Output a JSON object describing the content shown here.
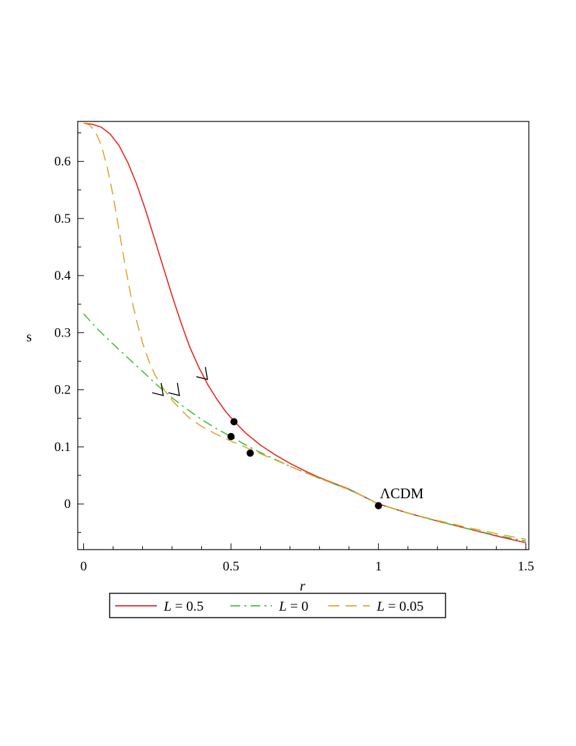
{
  "chart_data": {
    "type": "line",
    "xlabel": "r",
    "ylabel": "s",
    "xlim": [
      -0.02,
      1.51
    ],
    "ylim": [
      -0.08,
      0.67
    ],
    "x_ticks": [
      0,
      0.5,
      1,
      1.5
    ],
    "x_tick_labels": [
      "0",
      "0.5",
      "1",
      "1.5"
    ],
    "y_ticks": [
      0,
      0.1,
      0.2,
      0.3,
      0.4,
      0.5,
      0.6
    ],
    "y_tick_labels": [
      "0",
      "0.1",
      "0.2",
      "0.3",
      "0.4",
      "0.5",
      "0.6"
    ],
    "legend_position": "bottom",
    "series": [
      {
        "name": "L = 0.5",
        "legend_var": "L",
        "legend_value": " = 0.5",
        "color": "#e8211b",
        "dash": "solid",
        "points": [
          [
            0.0,
            0.667
          ],
          [
            0.03,
            0.665
          ],
          [
            0.06,
            0.66
          ],
          [
            0.09,
            0.648
          ],
          [
            0.12,
            0.628
          ],
          [
            0.15,
            0.598
          ],
          [
            0.18,
            0.56
          ],
          [
            0.21,
            0.515
          ],
          [
            0.24,
            0.465
          ],
          [
            0.27,
            0.415
          ],
          [
            0.3,
            0.365
          ],
          [
            0.33,
            0.318
          ],
          [
            0.36,
            0.275
          ],
          [
            0.39,
            0.24
          ],
          [
            0.42,
            0.21
          ],
          [
            0.45,
            0.185
          ],
          [
            0.48,
            0.163
          ],
          [
            0.51,
            0.145
          ],
          [
            0.55,
            0.124
          ],
          [
            0.6,
            0.103
          ],
          [
            0.65,
            0.086
          ],
          [
            0.7,
            0.071
          ],
          [
            0.75,
            0.058
          ],
          [
            0.8,
            0.046
          ],
          [
            0.85,
            0.036
          ],
          [
            0.9,
            0.026
          ],
          [
            0.95,
            0.013
          ],
          [
            1.0,
            0.0
          ],
          [
            1.1,
            -0.016
          ],
          [
            1.2,
            -0.03
          ],
          [
            1.3,
            -0.043
          ],
          [
            1.4,
            -0.056
          ],
          [
            1.5,
            -0.068
          ]
        ]
      },
      {
        "name": "L = 0",
        "legend_var": "L",
        "legend_value": " = 0",
        "color": "#3fbf3f",
        "dash": "dashdot",
        "points": [
          [
            0.0,
            0.333
          ],
          [
            0.05,
            0.305
          ],
          [
            0.1,
            0.28
          ],
          [
            0.15,
            0.256
          ],
          [
            0.2,
            0.232
          ],
          [
            0.25,
            0.208
          ],
          [
            0.3,
            0.186
          ],
          [
            0.35,
            0.166
          ],
          [
            0.4,
            0.148
          ],
          [
            0.45,
            0.132
          ],
          [
            0.5,
            0.118
          ],
          [
            0.55,
            0.103
          ],
          [
            0.6,
            0.09
          ],
          [
            0.65,
            0.078
          ],
          [
            0.7,
            0.066
          ],
          [
            0.75,
            0.055
          ],
          [
            0.8,
            0.045
          ],
          [
            0.85,
            0.035
          ],
          [
            0.9,
            0.025
          ],
          [
            0.95,
            0.013
          ],
          [
            1.0,
            0.0
          ],
          [
            1.1,
            -0.016
          ],
          [
            1.2,
            -0.03
          ],
          [
            1.3,
            -0.043
          ],
          [
            1.4,
            -0.055
          ],
          [
            1.5,
            -0.065
          ]
        ]
      },
      {
        "name": "L = 0.05",
        "legend_var": "L",
        "legend_value": " = 0.05",
        "color": "#dca62a",
        "dash": "dash",
        "points": [
          [
            0.0,
            0.667
          ],
          [
            0.02,
            0.664
          ],
          [
            0.04,
            0.652
          ],
          [
            0.06,
            0.628
          ],
          [
            0.08,
            0.59
          ],
          [
            0.1,
            0.54
          ],
          [
            0.12,
            0.48
          ],
          [
            0.14,
            0.42
          ],
          [
            0.16,
            0.365
          ],
          [
            0.18,
            0.32
          ],
          [
            0.2,
            0.282
          ],
          [
            0.22,
            0.252
          ],
          [
            0.24,
            0.228
          ],
          [
            0.26,
            0.21
          ],
          [
            0.28,
            0.195
          ],
          [
            0.3,
            0.182
          ],
          [
            0.33,
            0.165
          ],
          [
            0.36,
            0.15
          ],
          [
            0.4,
            0.136
          ],
          [
            0.45,
            0.122
          ],
          [
            0.5,
            0.11
          ],
          [
            0.55,
            0.099
          ],
          [
            0.6,
            0.088
          ],
          [
            0.65,
            0.077
          ],
          [
            0.7,
            0.066
          ],
          [
            0.75,
            0.055
          ],
          [
            0.8,
            0.045
          ],
          [
            0.85,
            0.035
          ],
          [
            0.9,
            0.025
          ],
          [
            0.95,
            0.013
          ],
          [
            1.0,
            0.0
          ],
          [
            1.1,
            -0.016
          ],
          [
            1.2,
            -0.029
          ],
          [
            1.3,
            -0.041
          ],
          [
            1.4,
            -0.052
          ],
          [
            1.5,
            -0.062
          ]
        ]
      }
    ],
    "markers": [
      {
        "x": 0.51,
        "y": 0.144
      },
      {
        "x": 0.5,
        "y": 0.118
      },
      {
        "x": 0.565,
        "y": 0.089
      },
      {
        "x": 1.0,
        "y": -0.003
      }
    ],
    "arrows": [
      {
        "x": 0.42,
        "y": 0.218
      },
      {
        "x": 0.27,
        "y": 0.19
      },
      {
        "x": 0.325,
        "y": 0.19
      }
    ],
    "annotations": [
      {
        "text": "ΛCDM",
        "x": 1.0,
        "y": 0.0
      }
    ]
  }
}
